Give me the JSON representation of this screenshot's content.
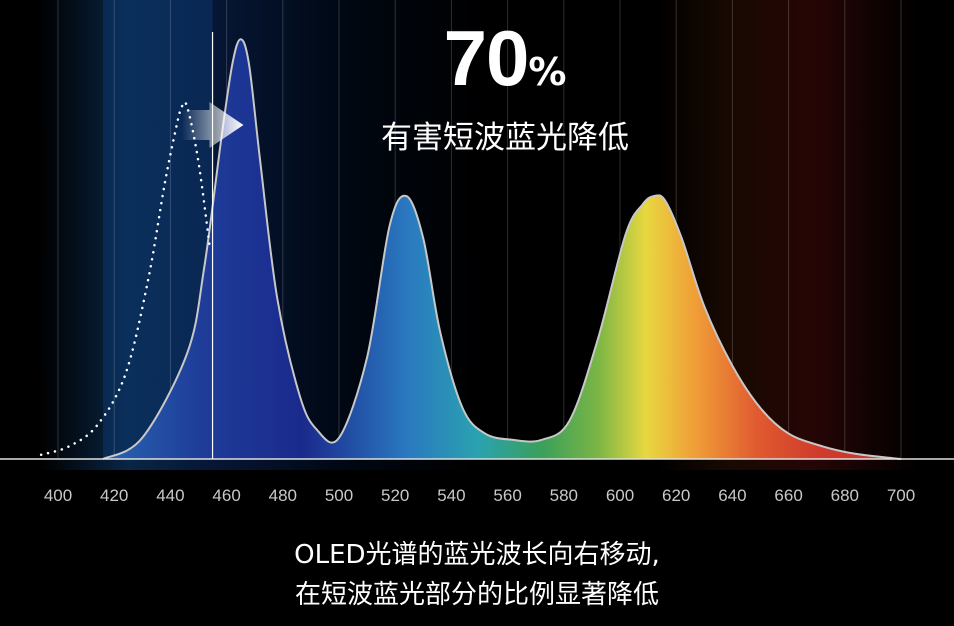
{
  "headline": {
    "value": "70",
    "unit": "%",
    "subtitle": "有害短波蓝光降低"
  },
  "caption": {
    "line1": "OLED光谱的蓝光波长向右移动,",
    "line2": "在短波蓝光部分的比例显著降低"
  },
  "chart_data": {
    "type": "line",
    "xlabel": "",
    "ylabel": "",
    "xlim": [
      400,
      700
    ],
    "x_ticks": [
      400,
      420,
      440,
      460,
      480,
      500,
      520,
      540,
      560,
      580,
      600,
      620,
      640,
      660,
      680,
      700
    ],
    "grid": true,
    "series": [
      {
        "style": "solid",
        "x": [
          416,
          430,
          446,
          452,
          458,
          462,
          465,
          468,
          472,
          478,
          486,
          492,
          500,
          510,
          518,
          524,
          530,
          536,
          544,
          552,
          562,
          572,
          582,
          592,
          602,
          608,
          612,
          616,
          622,
          630,
          640,
          650,
          660,
          672,
          684,
          700
        ],
        "y": [
          0,
          0.05,
          0.25,
          0.45,
          0.75,
          0.93,
          0.99,
          0.93,
          0.7,
          0.38,
          0.15,
          0.07,
          0.05,
          0.24,
          0.55,
          0.62,
          0.52,
          0.3,
          0.12,
          0.06,
          0.045,
          0.045,
          0.09,
          0.28,
          0.53,
          0.6,
          0.62,
          0.61,
          0.52,
          0.36,
          0.22,
          0.12,
          0.06,
          0.03,
          0.012,
          0
        ]
      },
      {
        "style": "dotted",
        "x": [
          394,
          404,
          414,
          424,
          432,
          438,
          442,
          444,
          446,
          450,
          454
        ],
        "y": [
          0.01,
          0.03,
          0.08,
          0.2,
          0.42,
          0.65,
          0.78,
          0.83,
          0.83,
          0.7,
          0.5
        ]
      }
    ],
    "annotations": [
      {
        "type": "vertical-line",
        "x": 455
      },
      {
        "type": "arrow",
        "from": 444,
        "to": 466,
        "direction": "right"
      }
    ],
    "colors": {
      "blue_peak": "#1c2a8f",
      "green_peak": "#3a9f5a",
      "red_peak": "#d63a2e",
      "line": "#c8c8c8"
    }
  }
}
